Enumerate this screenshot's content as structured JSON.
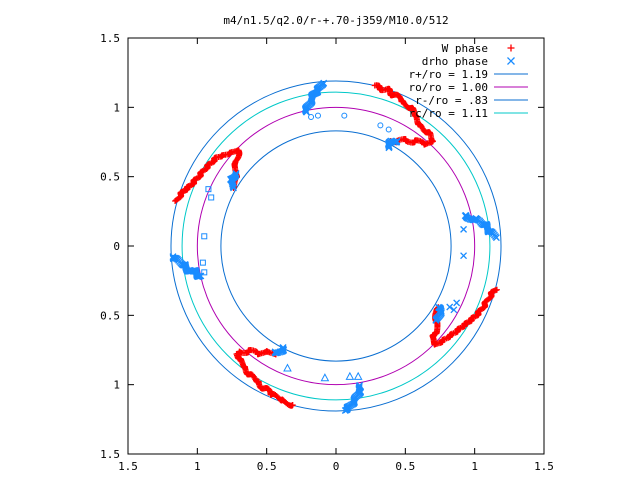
{
  "chart_data": {
    "type": "scatter",
    "title": "m4/n1.5/q2.0/r-+.70-j359/M10.0/512",
    "xlim": [
      -1.5,
      1.5
    ],
    "ylim": [
      -1.5,
      1.5
    ],
    "x_ticks": [
      -1.5,
      -1,
      -0.5,
      0,
      0.5,
      1,
      1.5
    ],
    "y_ticks": [
      -1.5,
      -1,
      -0.5,
      0,
      0.5,
      1,
      1.5
    ],
    "x_tick_labels": [
      "1.5",
      "1",
      "0.5",
      "0",
      "0.5",
      "1",
      "1.5"
    ],
    "y_tick_labels": [
      "1.5",
      "1",
      "0.5",
      "0",
      "0.5",
      "1",
      "1.5"
    ],
    "grid": false,
    "legend_position": "top-right",
    "legend": [
      {
        "label": "W phase",
        "kind": "marker",
        "marker": "+",
        "color": "#ff0000"
      },
      {
        "label": "drho phase",
        "kind": "marker",
        "marker": "x",
        "color": "#1a8cff"
      },
      {
        "label": "r+/ro = 1.19",
        "kind": "line",
        "color": "#0a6ed1"
      },
      {
        "label": "ro/ro = 1.00",
        "kind": "line",
        "color": "#b000b0"
      },
      {
        "label": "r-/ro = .83",
        "kind": "line",
        "color": "#0a6ed1"
      },
      {
        "label": "rc/ro = 1.11",
        "kind": "line",
        "color": "#00c8c8"
      }
    ],
    "circles": [
      {
        "r": 1.19,
        "color": "#0a6ed1"
      },
      {
        "r": 1.0,
        "color": "#b000b0"
      },
      {
        "r": 0.83,
        "color": "#0a6ed1"
      },
      {
        "r": 1.11,
        "color": "#00c8c8"
      }
    ],
    "series": [
      {
        "name": "W phase",
        "color": "#ff0000",
        "marker": "+",
        "arms": [
          [
            [
              0.28,
              1.15
            ],
            [
              0.36,
              1.13
            ],
            [
              0.45,
              1.07
            ],
            [
              0.53,
              1.0
            ],
            [
              0.58,
              0.93
            ],
            [
              0.62,
              0.86
            ],
            [
              0.67,
              0.8
            ],
            [
              0.69,
              0.75
            ],
            [
              0.66,
              0.74
            ],
            [
              0.6,
              0.75
            ],
            [
              0.52,
              0.76
            ],
            [
              0.46,
              0.76
            ],
            [
              0.4,
              0.76
            ]
          ],
          [
            [
              1.15,
              -0.32
            ],
            [
              1.09,
              -0.4
            ],
            [
              1.02,
              -0.48
            ],
            [
              0.94,
              -0.56
            ],
            [
              0.86,
              -0.63
            ],
            [
              0.78,
              -0.67
            ],
            [
              0.72,
              -0.7
            ],
            [
              0.7,
              -0.68
            ],
            [
              0.72,
              -0.62
            ],
            [
              0.72,
              -0.54
            ],
            [
              0.73,
              -0.48
            ],
            [
              0.73,
              -0.43
            ]
          ],
          [
            [
              -0.32,
              -1.15
            ],
            [
              -0.41,
              -1.1
            ],
            [
              -0.5,
              -1.04
            ],
            [
              -0.58,
              -0.97
            ],
            [
              -0.64,
              -0.9
            ],
            [
              -0.69,
              -0.84
            ],
            [
              -0.72,
              -0.78
            ],
            [
              -0.69,
              -0.76
            ],
            [
              -0.62,
              -0.76
            ],
            [
              -0.55,
              -0.77
            ],
            [
              -0.49,
              -0.77
            ],
            [
              -0.44,
              -0.77
            ]
          ],
          [
            [
              -1.15,
              0.32
            ],
            [
              -1.09,
              0.4
            ],
            [
              -1.02,
              0.48
            ],
            [
              -0.94,
              0.56
            ],
            [
              -0.86,
              0.63
            ],
            [
              -0.78,
              0.67
            ],
            [
              -0.72,
              0.7
            ],
            [
              -0.7,
              0.68
            ],
            [
              -0.72,
              0.62
            ],
            [
              -0.72,
              0.54
            ],
            [
              -0.73,
              0.48
            ],
            [
              -0.73,
              0.43
            ]
          ]
        ]
      },
      {
        "name": "drho phase",
        "color": "#1a8cff",
        "marker": "x",
        "arms": [
          [
            [
              -0.1,
              1.18
            ],
            [
              -0.14,
              1.12
            ],
            [
              -0.17,
              1.06
            ],
            [
              -0.21,
              1.0
            ],
            [
              -0.22,
              0.97
            ]
          ],
          [
            [
              0.37,
              0.72
            ],
            [
              0.4,
              0.76
            ],
            [
              0.45,
              0.76
            ]
          ],
          [
            [
              0.92,
              0.21
            ],
            [
              0.98,
              0.2
            ],
            [
              1.04,
              0.18
            ],
            [
              1.1,
              0.12
            ],
            [
              1.15,
              0.07
            ]
          ],
          [
            [
              0.73,
              -0.43
            ],
            [
              0.75,
              -0.48
            ],
            [
              0.73,
              -0.53
            ]
          ],
          [
            [
              0.18,
              -1.0
            ],
            [
              0.17,
              -1.06
            ],
            [
              0.14,
              -1.11
            ],
            [
              0.1,
              -1.15
            ],
            [
              0.06,
              -1.18
            ]
          ],
          [
            [
              -0.37,
              -0.72
            ],
            [
              -0.4,
              -0.76
            ],
            [
              -0.45,
              -0.76
            ]
          ],
          [
            [
              -1.18,
              -0.07
            ],
            [
              -1.12,
              -0.12
            ],
            [
              -1.06,
              -0.17
            ],
            [
              -1.0,
              -0.2
            ],
            [
              -0.97,
              -0.22
            ]
          ],
          [
            [
              -0.73,
              0.43
            ],
            [
              -0.75,
              0.48
            ],
            [
              -0.73,
              0.53
            ]
          ]
        ]
      }
    ],
    "sparse_points": [
      {
        "shape": "circle",
        "points": [
          [
            -0.18,
            0.93
          ],
          [
            -0.13,
            0.94
          ],
          [
            0.06,
            0.94
          ],
          [
            0.32,
            0.87
          ],
          [
            0.38,
            0.84
          ]
        ]
      },
      {
        "shape": "x",
        "points": [
          [
            0.92,
            0.12
          ],
          [
            0.92,
            -0.07
          ],
          [
            0.87,
            -0.41
          ],
          [
            0.85,
            -0.46
          ],
          [
            0.82,
            -0.44
          ]
        ]
      },
      {
        "shape": "triangle",
        "points": [
          [
            -0.35,
            -0.88
          ],
          [
            -0.08,
            -0.95
          ],
          [
            0.1,
            -0.94
          ],
          [
            0.16,
            -0.94
          ]
        ]
      },
      {
        "shape": "square",
        "points": [
          [
            -0.92,
            0.41
          ],
          [
            -0.9,
            0.35
          ],
          [
            -0.95,
            0.07
          ],
          [
            -0.96,
            -0.12
          ],
          [
            -0.95,
            -0.19
          ]
        ]
      }
    ]
  }
}
